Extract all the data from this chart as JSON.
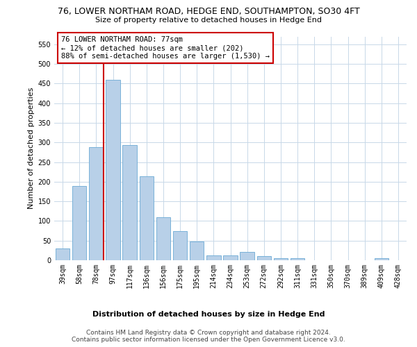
{
  "title": "76, LOWER NORTHAM ROAD, HEDGE END, SOUTHAMPTON, SO30 4FT",
  "subtitle": "Size of property relative to detached houses in Hedge End",
  "xlabel": "Distribution of detached houses by size in Hedge End",
  "ylabel": "Number of detached properties",
  "categories": [
    "39sqm",
    "58sqm",
    "78sqm",
    "97sqm",
    "117sqm",
    "136sqm",
    "156sqm",
    "175sqm",
    "195sqm",
    "214sqm",
    "234sqm",
    "253sqm",
    "272sqm",
    "292sqm",
    "311sqm",
    "331sqm",
    "350sqm",
    "370sqm",
    "389sqm",
    "409sqm",
    "428sqm"
  ],
  "values": [
    30,
    190,
    288,
    460,
    293,
    213,
    109,
    74,
    47,
    13,
    13,
    21,
    10,
    5,
    6,
    0,
    0,
    0,
    0,
    6,
    0
  ],
  "bar_color": "#b8d0e8",
  "bar_edge_color": "#6aaad4",
  "highlight_bar_idx": 2,
  "highlight_line_color": "#cc0000",
  "annotation_lines": [
    "76 LOWER NORTHAM ROAD: 77sqm",
    "← 12% of detached houses are smaller (202)",
    "88% of semi-detached houses are larger (1,530) →"
  ],
  "annotation_box_edgecolor": "#cc0000",
  "ylim": [
    0,
    570
  ],
  "yticks": [
    0,
    50,
    100,
    150,
    200,
    250,
    300,
    350,
    400,
    450,
    500,
    550
  ],
  "footer_line1": "Contains HM Land Registry data © Crown copyright and database right 2024.",
  "footer_line2": "Contains public sector information licensed under the Open Government Licence v3.0.",
  "bg_color": "#ffffff",
  "grid_color": "#c8d8e8",
  "title_fontsize": 9,
  "subtitle_fontsize": 8,
  "ylabel_fontsize": 8,
  "tick_fontsize": 7,
  "annotation_fontsize": 7.5,
  "xlabel_fontsize": 8,
  "footer_fontsize": 6.5
}
